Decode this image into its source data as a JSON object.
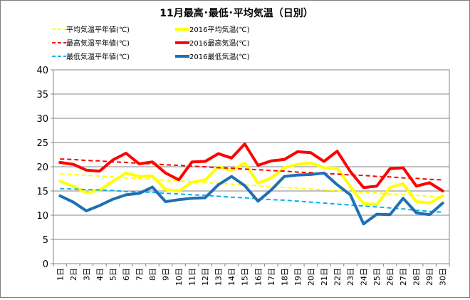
{
  "chart_data": {
    "type": "line",
    "title": "11月最高･最低･平均気温（日別）",
    "xlabel": "",
    "ylabel": "",
    "ylim": [
      0,
      40
    ],
    "yticks": [
      0,
      5,
      10,
      15,
      20,
      25,
      30,
      35,
      40
    ],
    "grid": true,
    "legend_position": "top",
    "categories": [
      "1日",
      "2日",
      "3日",
      "4日",
      "5日",
      "6日",
      "7日",
      "8日",
      "9日",
      "10日",
      "11日",
      "12日",
      "13日",
      "14日",
      "15日",
      "16日",
      "17日",
      "18日",
      "19日",
      "20日",
      "21日",
      "22日",
      "23日",
      "24日",
      "25日",
      "26日",
      "27日",
      "28日",
      "29日",
      "30日"
    ],
    "series": [
      {
        "name": "平均気温平年値(℃)",
        "style": "dashed",
        "color": "#ffff00",
        "values": [
          18.5,
          18.4,
          18.2,
          18.1,
          17.9,
          17.7,
          17.6,
          17.4,
          17.2,
          17.1,
          16.9,
          16.7,
          16.6,
          16.4,
          16.2,
          16.1,
          15.9,
          15.7,
          15.6,
          15.4,
          15.2,
          15.1,
          14.9,
          14.7,
          14.6,
          14.4,
          14.2,
          14.1,
          13.9,
          13.7
        ]
      },
      {
        "name": "2016平均気温(℃)",
        "style": "solid",
        "color": "#ffff00",
        "values": [
          17.0,
          16.0,
          14.6,
          15.2,
          17.0,
          18.7,
          18.0,
          18.1,
          15.3,
          15.0,
          16.8,
          17.3,
          20.0,
          19.2,
          20.8,
          16.6,
          17.7,
          19.8,
          20.5,
          20.8,
          19.8,
          19.7,
          15.9,
          12.4,
          12.2,
          15.7,
          16.5,
          12.8,
          12.5,
          14.0
        ]
      },
      {
        "name": "最高気温平年値(℃)",
        "style": "dashed",
        "color": "#ff0000",
        "values": [
          21.6,
          21.5,
          21.3,
          21.2,
          21.0,
          20.9,
          20.7,
          20.6,
          20.4,
          20.3,
          20.1,
          20.0,
          19.8,
          19.7,
          19.5,
          19.4,
          19.2,
          19.1,
          18.9,
          18.8,
          18.6,
          18.5,
          18.3,
          18.2,
          18.0,
          17.9,
          17.7,
          17.6,
          17.4,
          17.3
        ]
      },
      {
        "name": "2016最高気温(℃)",
        "style": "solid",
        "color": "#ff0000",
        "values": [
          20.9,
          20.5,
          19.3,
          19.1,
          21.4,
          22.8,
          20.6,
          21.0,
          18.7,
          17.3,
          21.0,
          21.1,
          22.7,
          21.8,
          24.7,
          20.3,
          21.2,
          21.5,
          23.1,
          22.9,
          21.1,
          23.2,
          19.0,
          15.7,
          16.0,
          19.6,
          19.8,
          16.0,
          16.7,
          15.0
        ]
      },
      {
        "name": "最低気温平年値(℃)",
        "style": "dashed",
        "color": "#00b0f0",
        "values": [
          15.5,
          15.4,
          15.3,
          15.2,
          15.1,
          14.9,
          14.8,
          14.7,
          14.5,
          14.4,
          14.2,
          14.1,
          13.9,
          13.7,
          13.6,
          13.4,
          13.2,
          13.1,
          12.9,
          12.7,
          12.5,
          12.3,
          12.1,
          11.9,
          11.7,
          11.5,
          11.3,
          11.0,
          10.8,
          10.6
        ]
      },
      {
        "name": "2016最低気温(℃)",
        "style": "solid",
        "color": "#1f6fb4",
        "values": [
          14.0,
          12.7,
          10.9,
          12.0,
          13.3,
          14.2,
          14.5,
          15.8,
          12.8,
          13.2,
          13.5,
          13.6,
          16.3,
          18.0,
          16.1,
          12.9,
          15.2,
          18.0,
          18.3,
          18.4,
          18.7,
          16.3,
          14.2,
          8.2,
          10.2,
          10.1,
          13.5,
          10.5,
          10.1,
          12.5
        ]
      }
    ]
  }
}
